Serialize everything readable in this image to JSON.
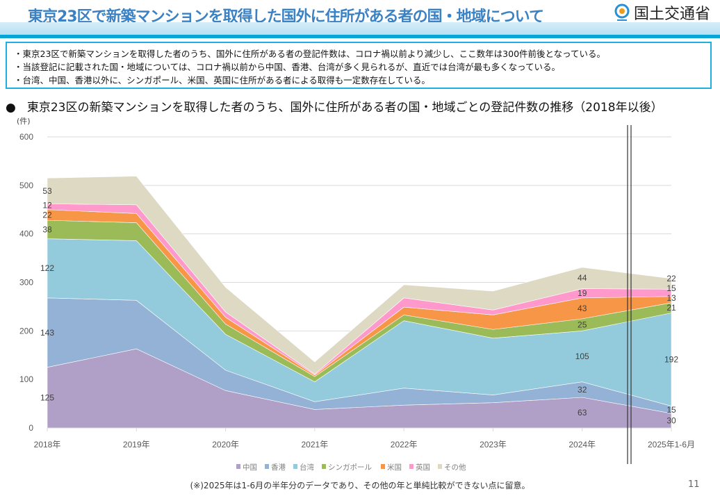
{
  "header": {
    "title": "東京23区で新築マンションを取得した国外に住所がある者の国・地域について",
    "logo_text": "国土交通省"
  },
  "summary": {
    "lines": [
      "・東京23区で新築マンションを取得した者のうち、国外に住所がある者の登記件数は、コロナ禍以前より減少し、ここ数年は300件前後となっている。",
      "・当該登記に記載された国・地域については、コロナ禍以前から中国、香港、台湾が多く見られるが、直近では台湾が最も多くなっている。",
      "・台湾、中国、香港以外に、シンガポール、米国、英国に住所がある者による取得も一定数存在している。"
    ]
  },
  "section": {
    "bullet": "●",
    "heading": "東京23区の新築マンションを取得した者のうち、国外に住所がある者の国・地域ごとの登記件数の推移（2018年以後）"
  },
  "footer": {
    "note": "(※)2025年は1-6月の半年分のデータであり、その他の年と単純比較ができない点に留意。",
    "page_number": "11"
  },
  "chart_data": {
    "type": "area",
    "stacked": true,
    "ylabel": "(件)",
    "ylim": [
      0,
      600
    ],
    "yticks": [
      "0",
      "100",
      "200",
      "300",
      "400",
      "500",
      "600"
    ],
    "grid": true,
    "legend_position": "bottom",
    "categories": [
      "2018年",
      "2019年",
      "2020年",
      "2021年",
      "2022年",
      "2023年",
      "2024年",
      "2025年1-6月"
    ],
    "series": [
      {
        "name": "中国",
        "color": "#b09fc6",
        "values": [
          125,
          163,
          77,
          38,
          47,
          52,
          63,
          30
        ],
        "labels": [
          "125",
          null,
          null,
          null,
          null,
          null,
          "63",
          "30"
        ]
      },
      {
        "name": "香港",
        "color": "#94b1d6",
        "values": [
          143,
          100,
          42,
          16,
          35,
          16,
          32,
          15
        ],
        "labels": [
          "143",
          null,
          null,
          null,
          null,
          null,
          "32",
          "15"
        ]
      },
      {
        "name": "台湾",
        "color": "#93cadc",
        "values": [
          122,
          123,
          74,
          41,
          139,
          117,
          105,
          192
        ],
        "labels": [
          "122",
          null,
          null,
          null,
          null,
          null,
          "105",
          "192"
        ]
      },
      {
        "name": "シンガポール",
        "color": "#9bbb59",
        "values": [
          38,
          37,
          21,
          11,
          12,
          18,
          25,
          21
        ],
        "labels": [
          "38",
          null,
          null,
          null,
          null,
          null,
          "25",
          "21"
        ]
      },
      {
        "name": "米国",
        "color": "#f79646",
        "values": [
          22,
          19,
          14,
          3,
          16,
          30,
          43,
          13
        ],
        "labels": [
          "22",
          null,
          null,
          null,
          null,
          null,
          "43",
          "13"
        ]
      },
      {
        "name": "英国",
        "color": "#ff99cc",
        "values": [
          12,
          18,
          11,
          2,
          19,
          10,
          19,
          15
        ],
        "labels": [
          "12",
          null,
          null,
          null,
          null,
          null,
          "19",
          "15"
        ]
      },
      {
        "name": "その他",
        "color": "#ddd9c3",
        "values": [
          53,
          59,
          51,
          25,
          27,
          39,
          44,
          22
        ],
        "labels": [
          "53",
          null,
          null,
          null,
          null,
          null,
          "44",
          "22"
        ]
      }
    ]
  }
}
